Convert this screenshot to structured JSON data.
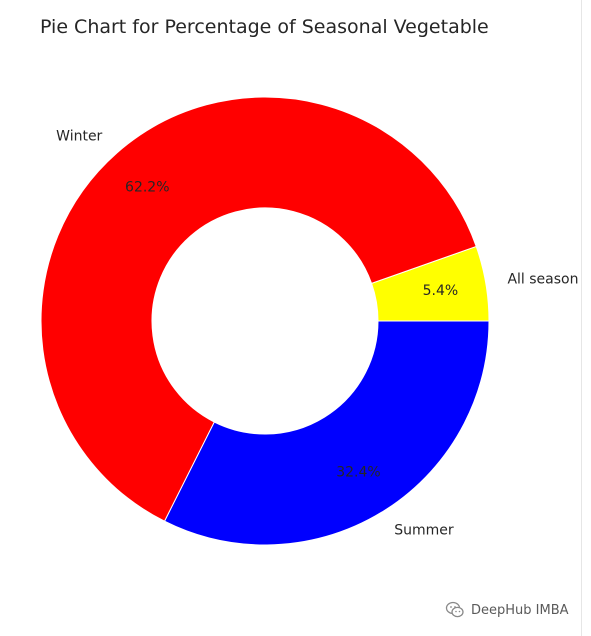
{
  "chart_data": {
    "type": "pie",
    "title": "Pie Chart for Percentage of Seasonal Vegetable",
    "donut": true,
    "categories": [
      "All season",
      "Winter",
      "Summer"
    ],
    "values": [
      5.4,
      62.2,
      32.4
    ],
    "labels": [
      "5.4%",
      "62.2%",
      "32.4%"
    ],
    "colors": [
      "#ffff00",
      "#ff0000",
      "#0000ff"
    ],
    "legend": "none"
  },
  "watermark": {
    "text": "DeepHub IMBA",
    "icon": "wechat-logo-icon"
  }
}
